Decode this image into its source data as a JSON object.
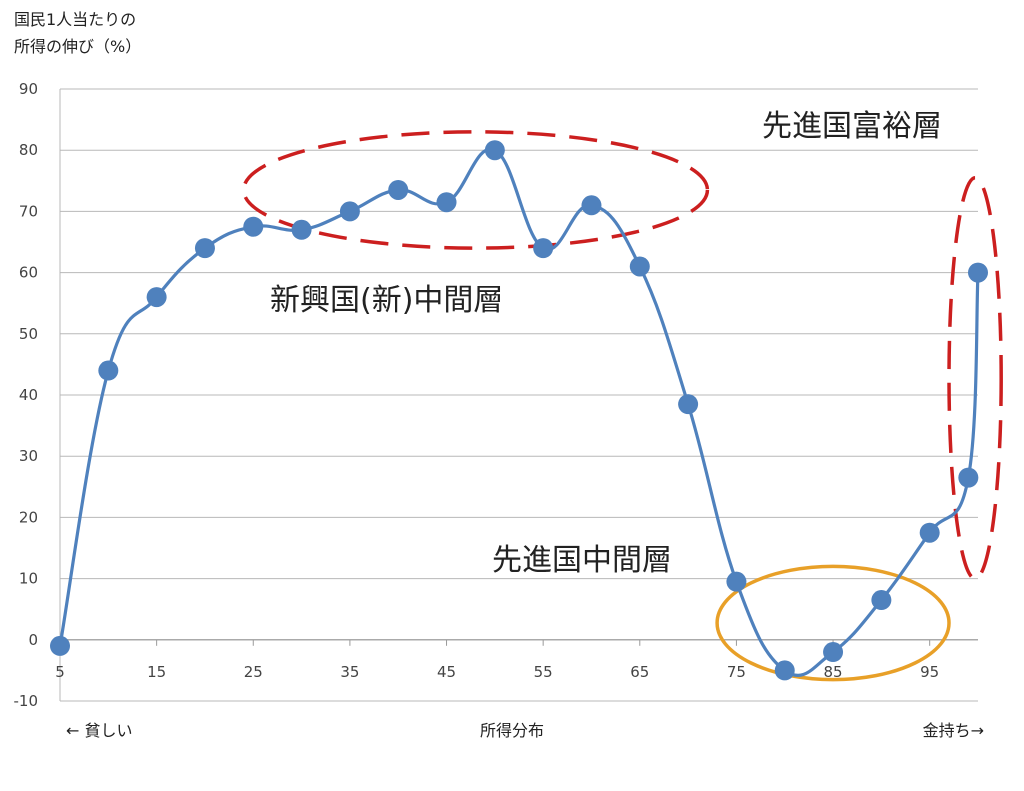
{
  "chart_data": {
    "type": "line",
    "ylabel_lines": [
      "国民1人当たりの",
      "所得の伸び（%）"
    ],
    "xlabel": "所得分布",
    "x_left_label": "← 貧しい",
    "x_right_label": "金持ち→",
    "xlim": [
      5,
      100
    ],
    "ylim": [
      -10,
      90
    ],
    "yticks": [
      -10,
      0,
      10,
      20,
      30,
      40,
      50,
      60,
      70,
      80,
      90
    ],
    "xticks": [
      5,
      15,
      25,
      35,
      45,
      55,
      65,
      75,
      85,
      95
    ],
    "grid": true,
    "series": [
      {
        "color": "#4f81bd",
        "points": [
          {
            "x": 5,
            "y": -1
          },
          {
            "x": 10,
            "y": 44
          },
          {
            "x": 15,
            "y": 56
          },
          {
            "x": 20,
            "y": 64
          },
          {
            "x": 25,
            "y": 67.5
          },
          {
            "x": 30,
            "y": 67
          },
          {
            "x": 35,
            "y": 70
          },
          {
            "x": 40,
            "y": 73.5
          },
          {
            "x": 45,
            "y": 71.5
          },
          {
            "x": 50,
            "y": 80
          },
          {
            "x": 55,
            "y": 64
          },
          {
            "x": 60,
            "y": 71
          },
          {
            "x": 65,
            "y": 61
          },
          {
            "x": 70,
            "y": 38.5
          },
          {
            "x": 75,
            "y": 9.5
          },
          {
            "x": 80,
            "y": -5
          },
          {
            "x": 85,
            "y": -2
          },
          {
            "x": 90,
            "y": 6.5
          },
          {
            "x": 95,
            "y": 17.5
          },
          {
            "x": 99,
            "y": 26.5
          },
          {
            "x": 100,
            "y": 60
          }
        ]
      }
    ],
    "annotations": [
      {
        "text": "先進国富裕層",
        "color": "#cc1f1f"
      },
      {
        "text": "新興国(新)中間層",
        "color": "#cc1f1f"
      },
      {
        "text": "先進国中間層",
        "color": "#e8a028"
      }
    ]
  }
}
